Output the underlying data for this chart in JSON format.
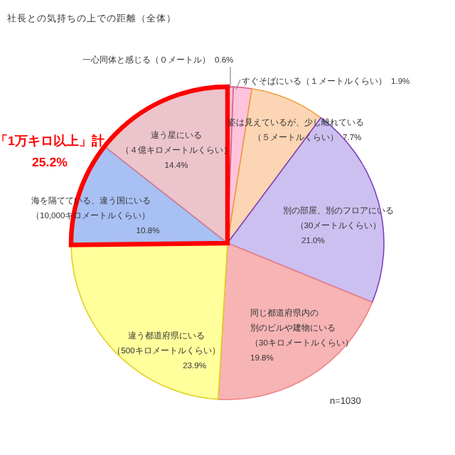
{
  "chart_data": {
    "type": "pie",
    "title": "社長との気持ちの上での距離（全体）",
    "categories": [
      "一心同体と感じる（０メートル）",
      "すぐそばにいる（１メートルくらい）",
      "姿は見えているが、少し離れている（５メートルくらい）",
      "別の部屋、別のフロアにいる（30メートルくらい）",
      "同じ都道府県内の別のビルや建物にいる（30キロメートルくらい）",
      "違う都道府県にいる（500キロメートルくらい）",
      "海を隔てている、違う国にいる（10,000キロメートルくらい）",
      "違う星にいる（４億キロメートルくらい）"
    ],
    "values": [
      0.6,
      1.9,
      7.7,
      21.0,
      19.8,
      23.9,
      10.8,
      14.4
    ],
    "value_labels": [
      "0.6%",
      "1.9%",
      "7.7%",
      "21.0%",
      "19.8%",
      "23.9%",
      "10.8%",
      "14.4%"
    ],
    "colors": [
      "#f4c6d0",
      "#ffc4dc",
      "#fcd5b4",
      "#ccc0f0",
      "#f7b4b4",
      "#ffff9c",
      "#a8c0f4",
      "#ecc4cc"
    ],
    "annotations": [
      "「1万キロ以上」計\n25.2%",
      "n=1030"
    ]
  }
}
